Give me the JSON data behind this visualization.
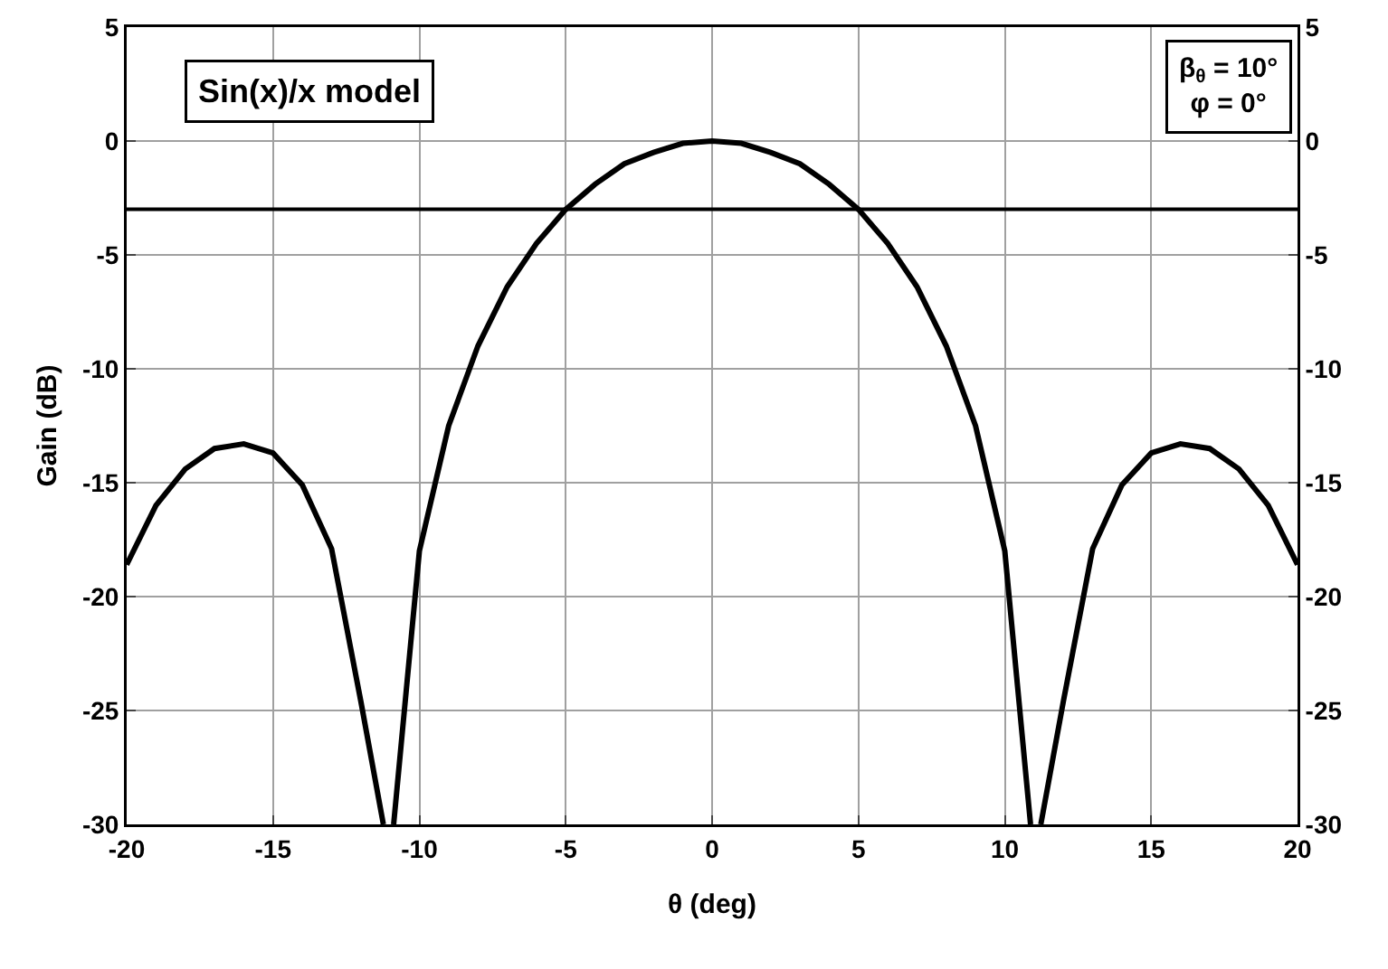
{
  "chart_data": {
    "type": "line",
    "xlabel": "θ (deg)",
    "ylabel": "Gain (dB)",
    "annotations": [
      "Sin(x)/x model",
      "β$_{θ}$ = 10°\nφ = 0°"
    ],
    "series": [
      {
        "color": "#000000",
        "x": [
          -20,
          -19,
          -18,
          -17,
          -16,
          -15,
          -14,
          -13,
          -12,
          -11.23,
          -11,
          -10.88,
          -10,
          -9,
          -8,
          -7,
          -6,
          -5,
          -4,
          -3,
          -2,
          -1,
          0,
          1,
          2,
          3,
          4,
          5,
          6,
          7,
          8,
          9,
          10,
          10.88,
          11,
          11.23,
          12,
          13,
          14,
          15,
          16,
          17,
          18,
          19,
          20
        ],
        "values": [
          -18.6,
          -16.0,
          -14.4,
          -13.5,
          -13.3,
          -13.7,
          -15.1,
          -17.9,
          -24.6,
          -30,
          null,
          -30,
          -18.0,
          -12.5,
          -9.0,
          -6.4,
          -4.5,
          -3.0,
          -1.9,
          -1.0,
          -0.5,
          -0.1,
          0,
          -0.1,
          -0.5,
          -1.0,
          -1.9,
          -3.0,
          -4.5,
          -6.4,
          -9.0,
          -12.5,
          -18.0,
          -30,
          null,
          -30,
          -24.6,
          -17.9,
          -15.1,
          -13.7,
          -13.3,
          -13.5,
          -14.4,
          -16.0,
          -18.6
        ]
      }
    ],
    "xlim": [
      -20,
      20
    ],
    "xticks": [
      -20,
      -15,
      -10,
      -5,
      0,
      5,
      10,
      15,
      20
    ],
    "ylim": [
      -30,
      5
    ],
    "yticks": [
      -30,
      -25,
      -20,
      -15,
      -10,
      -5,
      0,
      5
    ],
    "y2lim": [
      -30,
      5
    ],
    "y2ticks": [
      -30,
      -25,
      -20,
      -15,
      -10,
      -5,
      0,
      5
    ],
    "ref_lines": [
      {
        "axis": "y",
        "value": -3,
        "color": "#000000",
        "line_style": "solid"
      }
    ],
    "grid": true,
    "marker": "none",
    "line_style": "solid"
  }
}
